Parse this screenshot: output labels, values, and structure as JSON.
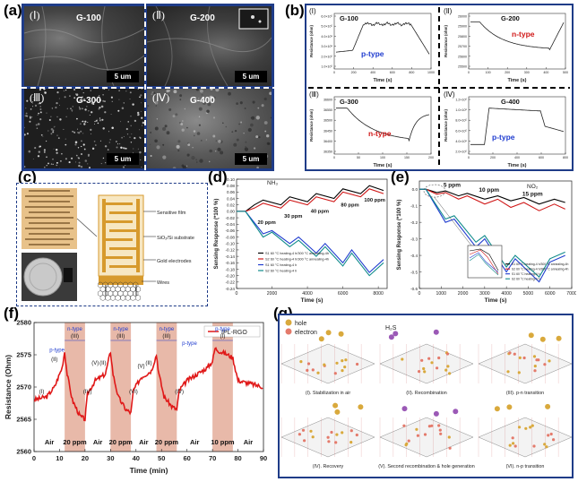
{
  "figure_labels": {
    "a": "(a)",
    "b": "(b)",
    "c": "(c)",
    "d": "(d)",
    "e": "(e)",
    "f": "(f)",
    "g": "(g)"
  },
  "panel_a": {
    "images": [
      {
        "roman": "(Ⅰ)",
        "tag": "G-100",
        "scale": "5 um"
      },
      {
        "roman": "(Ⅱ)",
        "tag": "G-200",
        "scale": "5 um"
      },
      {
        "roman": "(Ⅲ)",
        "tag": "G-300",
        "scale": "5 um"
      },
      {
        "roman": "(Ⅳ)",
        "tag": "G-400",
        "scale": "5 um"
      }
    ]
  },
  "panel_b": {
    "subplots": [
      {
        "roman": "(Ⅰ)",
        "tag": "G-100",
        "type": "p-type",
        "type_color": "#1f3ccf",
        "ylabel": "Resistance (ohm)",
        "xlabel": "Time (s)",
        "yticks": [
          "1.0×10⁵",
          "2.0×10⁵",
          "3.0×10⁵",
          "4.0×10⁵",
          "5.0×10⁵",
          "6.0×10⁵"
        ],
        "xticks": [
          "0",
          "200",
          "400",
          "600",
          "800",
          "1000"
        ]
      },
      {
        "roman": "(Ⅱ)",
        "tag": "G-200",
        "type": "n-type",
        "type_color": "#d01818",
        "ylabel": "Resistance (ohm)",
        "xlabel": "Time (s)",
        "yticks": [
          "25500",
          "25600",
          "25700",
          "25800",
          "25900",
          "26000"
        ],
        "xticks": [
          "0",
          "100",
          "200",
          "300",
          "400",
          "500"
        ]
      },
      {
        "roman": "(Ⅲ)",
        "tag": "G-300",
        "type": "n-type",
        "type_color": "#d01818",
        "ylabel": "Resistance (ohm)",
        "xlabel": "Time (s)",
        "yticks": [
          "36350",
          "36400",
          "36450",
          "36500",
          "36550",
          "36600"
        ],
        "xticks": [
          "0",
          "50",
          "100",
          "150",
          "200"
        ]
      },
      {
        "roman": "(Ⅳ)",
        "tag": "G-400",
        "type": "p-type",
        "type_color": "#1f3ccf",
        "ylabel": "Resistance (ohm)",
        "xlabel": "Time (s)",
        "yticks": [
          "2.0×10⁵",
          "4.0×10⁵",
          "6.0×10⁵",
          "8.0×10⁵",
          "1.0×10⁶",
          "1.2×10⁶"
        ],
        "xticks": [
          "0",
          "200",
          "400",
          "600",
          "800"
        ]
      }
    ]
  },
  "panel_c": {
    "labels": [
      "Sensitive film",
      "SiO₂/Si substrate",
      "Gold electrodes",
      "Wires"
    ]
  },
  "chart_data": [
    {
      "id": "d",
      "type": "line",
      "title": "NH₃",
      "xlabel": "Time (s)",
      "ylabel": "Sensing Response (*100 %)",
      "xlim": [
        0,
        8500
      ],
      "ylim": [
        -0.24,
        0.1
      ],
      "xticks": [
        0,
        2000,
        4000,
        6000,
        8000
      ],
      "yticks": [
        0.1,
        0.08,
        0.06,
        0.04,
        0.02,
        0,
        -0.02,
        -0.04,
        -0.06,
        -0.08,
        -0.1,
        -0.12,
        -0.14,
        -0.16,
        -0.18,
        -0.2,
        -0.22,
        -0.24
      ],
      "annotations": [
        "20 ppm",
        "30 ppm",
        "40 ppm",
        "80 ppm",
        "100 ppm"
      ],
      "legend": [
        "S1 60 °C heating-4 h/300 °C annealing-4h",
        "S2 60 °C heating-4 h/300 °C annealing-4h",
        "S1 60 °C heating-4 h",
        "S2 60 °C heating-4 h"
      ],
      "series": [
        {
          "name": "S1 60 °C heating-4 h/300 °C annealing-4h",
          "color": "#000000",
          "x": [
            0,
            500,
            1000,
            1500,
            1500,
            2500,
            3000,
            3000,
            4000,
            4500,
            4500,
            5500,
            6000,
            6000,
            7000,
            7500,
            7500,
            8300
          ],
          "y": [
            0.0,
            0.0,
            0.02,
            0.035,
            0.035,
            0.02,
            0.045,
            0.045,
            0.03,
            0.055,
            0.055,
            0.04,
            0.07,
            0.07,
            0.055,
            0.08,
            0.08,
            0.065
          ]
        },
        {
          "name": "S2 60 °C heating-4 h/300 °C annealing-4h",
          "color": "#d01818",
          "x": [
            0,
            500,
            1000,
            1500,
            1500,
            2500,
            3000,
            3000,
            4000,
            4500,
            4500,
            5500,
            6000,
            6000,
            7000,
            7500,
            7500,
            8300
          ],
          "y": [
            0.0,
            0.0,
            0.01,
            0.025,
            0.025,
            0.01,
            0.035,
            0.035,
            0.02,
            0.045,
            0.045,
            0.03,
            0.06,
            0.06,
            0.045,
            0.07,
            0.07,
            0.055
          ]
        },
        {
          "name": "S1 60 °C heating-4 h",
          "color": "#1f3ccf",
          "x": [
            0,
            500,
            1500,
            2000,
            3000,
            3500,
            4500,
            5000,
            6000,
            6500,
            7500,
            8300
          ],
          "y": [
            0.0,
            0.0,
            -0.07,
            -0.06,
            -0.1,
            -0.08,
            -0.13,
            -0.1,
            -0.16,
            -0.12,
            -0.19,
            -0.15
          ]
        },
        {
          "name": "S2 60 °C heating-4 h",
          "color": "#108b8b",
          "x": [
            0,
            500,
            1500,
            2000,
            3000,
            3500,
            4500,
            5000,
            6000,
            6500,
            7500,
            8300
          ],
          "y": [
            0.0,
            0.0,
            -0.08,
            -0.065,
            -0.11,
            -0.09,
            -0.14,
            -0.11,
            -0.17,
            -0.13,
            -0.2,
            -0.16
          ]
        }
      ]
    },
    {
      "id": "e",
      "type": "line",
      "title": "NO₂",
      "xlabel": "Time (s)",
      "ylabel": "Sensing Response (*100 %)",
      "xlim": [
        0,
        7000
      ],
      "ylim": [
        -0.6,
        0.05
      ],
      "xticks": [
        0,
        1000,
        2000,
        3000,
        4000,
        5000,
        6000,
        7000
      ],
      "yticks": [
        0.0,
        -0.1,
        -0.2,
        -0.3,
        -0.4,
        -0.5,
        -0.6
      ],
      "annotations": [
        "5 ppm",
        "10 ppm",
        "15 ppm"
      ],
      "legend": [
        "S1 60 °C heating-4 h/300 °C annealing-4h",
        "S2 60 °C heating-4 h/300 °C annealing-4h",
        "S1 60 °C heating-4 h",
        "S2 60 °C heating-4 h"
      ],
      "series": [
        {
          "name": "S1 60 °C heating-4 h/300 °C annealing-4h",
          "color": "#000000",
          "x": [
            0,
            300,
            800,
            1200,
            1800,
            2200,
            3000,
            3600,
            4200,
            4800,
            5500,
            6200,
            6700
          ],
          "y": [
            0.0,
            0.0,
            -0.02,
            -0.01,
            -0.04,
            -0.025,
            -0.06,
            -0.04,
            -0.07,
            -0.05,
            -0.09,
            -0.06,
            -0.08
          ]
        },
        {
          "name": "S2 60 °C heating-4 h/300 °C annealing-4h",
          "color": "#d01818",
          "x": [
            0,
            300,
            800,
            1200,
            1800,
            2200,
            3000,
            3600,
            4200,
            4800,
            5500,
            6200,
            6700
          ],
          "y": [
            0.0,
            0.0,
            -0.03,
            -0.02,
            -0.06,
            -0.04,
            -0.09,
            -0.06,
            -0.11,
            -0.08,
            -0.13,
            -0.09,
            -0.12
          ]
        },
        {
          "name": "S1 60 °C heating-4 h",
          "color": "#1f3ccf",
          "x": [
            0,
            300,
            1200,
            1600,
            2600,
            3000,
            4000,
            4400,
            5500,
            6000,
            6700
          ],
          "y": [
            0.0,
            0.0,
            -0.2,
            -0.18,
            -0.35,
            -0.3,
            -0.5,
            -0.42,
            -0.56,
            -0.44,
            -0.4
          ]
        },
        {
          "name": "S2 60 °C heating-4 h",
          "color": "#108b8b",
          "x": [
            0,
            300,
            1200,
            1600,
            2600,
            3000,
            4000,
            4400,
            5500,
            6000,
            6700
          ],
          "y": [
            0.0,
            0.0,
            -0.18,
            -0.16,
            -0.32,
            -0.28,
            -0.47,
            -0.4,
            -0.53,
            -0.42,
            -0.38
          ]
        }
      ]
    },
    {
      "id": "f",
      "type": "line",
      "title": "",
      "xlabel": "Time (min)",
      "ylabel": "Resistance (Ohm)",
      "xlim": [
        0,
        90
      ],
      "ylim": [
        2560,
        2580
      ],
      "xticks": [
        0,
        10,
        20,
        30,
        40,
        50,
        60,
        70,
        80,
        90
      ],
      "yticks": [
        2560,
        2565,
        2570,
        2575,
        2580
      ],
      "legend": [
        "IPL-RGO"
      ],
      "exposures": [
        {
          "start": 12,
          "end": 20,
          "label": "20 ppm",
          "type": "n-type",
          "stage": "(III)"
        },
        {
          "start": 30,
          "end": 38,
          "label": "20 ppm",
          "type": "n-type",
          "stage": "(III)"
        },
        {
          "start": 48,
          "end": 56,
          "label": "20 ppm",
          "type": "n-type",
          "stage": "(III)"
        },
        {
          "start": 70,
          "end": 78,
          "label": "10 ppm",
          "type": "p-type",
          "stage": "(I)"
        }
      ],
      "air_labels": [
        "Air",
        "Air",
        "Air",
        "Air",
        "Air"
      ],
      "stage_labels": [
        "(I)",
        "(II)",
        "p-type",
        "(IV)",
        "(V)",
        "(II)",
        "(VI)",
        "(V)",
        "(II)",
        "p-type",
        "(IV)"
      ],
      "series": [
        {
          "name": "IPL-RGO",
          "color": "#e01818",
          "x": [
            0,
            5,
            8,
            10,
            11,
            12,
            13,
            15,
            18,
            20,
            21,
            24,
            28,
            30,
            31,
            33,
            36,
            38,
            39,
            42,
            46,
            48,
            49,
            51,
            54,
            56,
            57,
            60,
            64,
            68,
            70,
            71,
            73,
            76,
            78,
            80,
            85,
            90
          ],
          "y": [
            2568,
            2568.5,
            2570,
            2572,
            2573,
            2575.5,
            2572,
            2568,
            2565.5,
            2565,
            2569,
            2571,
            2572,
            2575.5,
            2572,
            2568.5,
            2566.5,
            2566,
            2569.5,
            2571.5,
            2572.5,
            2575,
            2572,
            2568.5,
            2567,
            2566.5,
            2569.5,
            2571,
            2572,
            2573,
            2574,
            2576,
            2575.5,
            2575,
            2574.5,
            2571,
            2570.5,
            2570
          ]
        }
      ]
    }
  ],
  "panel_g": {
    "legend": {
      "hole": "hole",
      "electron": "electron"
    },
    "molecule_label": "H₂S",
    "captions": [
      "(I). Stabilization in air",
      "(II). Recombination",
      "(III). p-n transition",
      "(IV). Recovery",
      "(V). Second recombination & hole generation",
      "(VI). n-p transition"
    ]
  },
  "colors": {
    "frame_blue": "#1f3c88",
    "shade": "#e8b9a9",
    "hole": "#d9a93c",
    "electron": "#e47a6b",
    "h2s": "#9b59b6",
    "lattice": "#555555"
  }
}
